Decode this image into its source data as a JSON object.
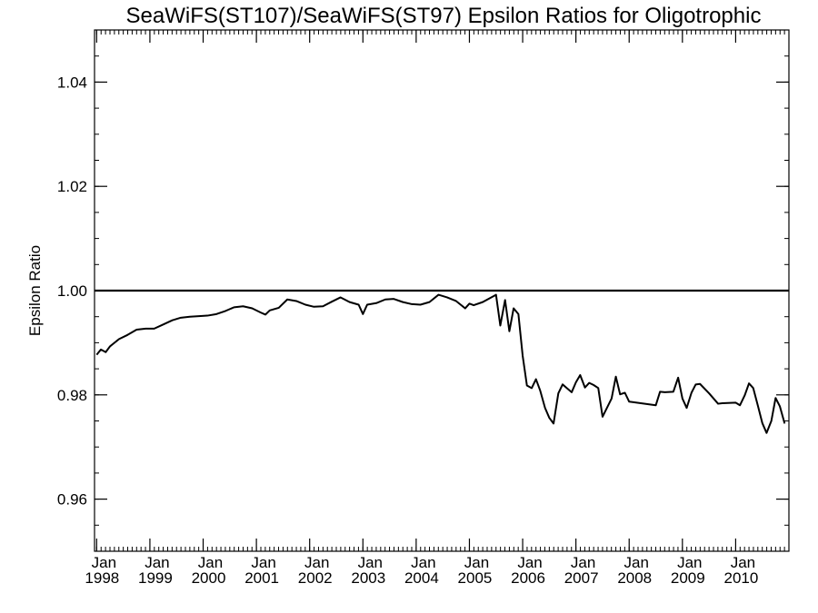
{
  "chart_data": {
    "type": "line",
    "title": "SeaWiFS(ST107)/SeaWiFS(ST97)  Epsilon Ratios for Oligotrophic",
    "xlabel": "",
    "ylabel": "Epsilon Ratio",
    "xlim": [
      1997.96,
      2011.0
    ],
    "ylim": [
      0.95,
      1.05
    ],
    "yticks": [
      0.96,
      0.98,
      1.0,
      1.02,
      1.04
    ],
    "ytick_labels": [
      "0.96",
      "0.98",
      "1.00",
      "1.02",
      "1.04"
    ],
    "xticks": [
      {
        "year": 1998,
        "month": "Jan",
        "label": "1998"
      },
      {
        "year": 1999,
        "month": "Jan",
        "label": "1999"
      },
      {
        "year": 2000,
        "month": "Jan",
        "label": "2000"
      },
      {
        "year": 2001,
        "month": "Jan",
        "label": "2001"
      },
      {
        "year": 2002,
        "month": "Jan",
        "label": "2002"
      },
      {
        "year": 2003,
        "month": "Jan",
        "label": "2003"
      },
      {
        "year": 2004,
        "month": "Jan",
        "label": "2004"
      },
      {
        "year": 2005,
        "month": "Jan",
        "label": "2005"
      },
      {
        "year": 2006,
        "month": "Jan",
        "label": "2006"
      },
      {
        "year": 2007,
        "month": "Jan",
        "label": "2007"
      },
      {
        "year": 2008,
        "month": "Jan",
        "label": "2008"
      },
      {
        "year": 2009,
        "month": "Jan",
        "label": "2009"
      },
      {
        "year": 2010,
        "month": "Jan",
        "label": "2010"
      }
    ],
    "reference_line": {
      "y": 1.0
    },
    "grid": false,
    "series": [
      {
        "x": [
          1998.0,
          1998.08,
          1998.17,
          1998.25,
          1998.42,
          1998.58,
          1998.75,
          1998.92,
          1999.08,
          1999.25,
          1999.42,
          1999.58,
          1999.75,
          1999.92,
          2000.08,
          2000.25,
          2000.42,
          2000.58,
          2000.75,
          2000.92,
          2001.08,
          2001.17,
          2001.25,
          2001.42,
          2001.58,
          2001.75,
          2001.92,
          2002.08,
          2002.25,
          2002.42,
          2002.58,
          2002.75,
          2002.92,
          2003.0,
          2003.08,
          2003.25,
          2003.42,
          2003.58,
          2003.75,
          2003.92,
          2004.08,
          2004.25,
          2004.42,
          2004.58,
          2004.75,
          2004.92,
          2005.0,
          2005.08,
          2005.25,
          2005.5,
          2005.58,
          2005.67,
          2005.75,
          2005.83,
          2005.92,
          2006.0,
          2006.08,
          2006.17,
          2006.25,
          2006.33,
          2006.42,
          2006.5,
          2006.58,
          2006.67,
          2006.75,
          2006.83,
          2006.92,
          2007.0,
          2007.08,
          2007.17,
          2007.25,
          2007.33,
          2007.42,
          2007.5,
          2007.67,
          2007.75,
          2007.83,
          2007.92,
          2008.0,
          2008.08,
          2008.5,
          2008.58,
          2008.67,
          2008.83,
          2008.92,
          2009.0,
          2009.08,
          2009.17,
          2009.25,
          2009.33,
          2009.5,
          2009.67,
          2009.75,
          2010.0,
          2010.08,
          2010.17,
          2010.25,
          2010.33,
          2010.42,
          2010.5,
          2010.58,
          2010.67,
          2010.75,
          2010.83,
          2010.92
        ],
        "y": [
          0.9877,
          0.9887,
          0.9882,
          0.9893,
          0.9907,
          0.9915,
          0.9925,
          0.9927,
          0.9927,
          0.9935,
          0.9943,
          0.9948,
          0.995,
          0.9951,
          0.9952,
          0.9955,
          0.9961,
          0.9968,
          0.997,
          0.9966,
          0.9958,
          0.9954,
          0.9962,
          0.9967,
          0.9983,
          0.998,
          0.9973,
          0.9969,
          0.997,
          0.9979,
          0.9987,
          0.9978,
          0.9973,
          0.9955,
          0.9973,
          0.9976,
          0.9983,
          0.9984,
          0.9978,
          0.9974,
          0.9973,
          0.9978,
          0.9992,
          0.9987,
          0.998,
          0.9966,
          0.9975,
          0.9972,
          0.9978,
          0.9992,
          0.9933,
          0.9982,
          0.9922,
          0.9966,
          0.9955,
          0.9875,
          0.9818,
          0.9813,
          0.983,
          0.9808,
          0.9775,
          0.9756,
          0.9745,
          0.9803,
          0.982,
          0.9813,
          0.9805,
          0.9824,
          0.9838,
          0.9814,
          0.9823,
          0.9819,
          0.9813,
          0.9758,
          0.9793,
          0.9835,
          0.9801,
          0.9804,
          0.9787,
          0.9786,
          0.978,
          0.9806,
          0.9805,
          0.9806,
          0.9833,
          0.9793,
          0.9775,
          0.9804,
          0.982,
          0.9821,
          0.9803,
          0.9783,
          0.9784,
          0.9785,
          0.978,
          0.9799,
          0.9822,
          0.9813,
          0.9778,
          0.9746,
          0.9727,
          0.975,
          0.9794,
          0.9778,
          0.9745
        ]
      }
    ]
  }
}
